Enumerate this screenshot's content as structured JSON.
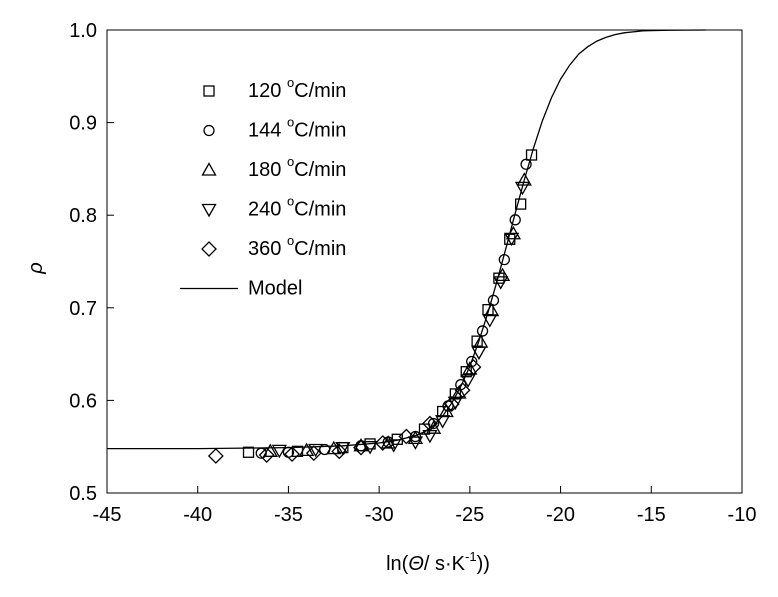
{
  "chart_data": {
    "type": "scatter",
    "title": "",
    "xlabel": "ln(Θ/ s·K⁻¹))",
    "xlabel_parts": {
      "pre": "ln(",
      "theta": "Θ",
      "mid": "/ s·K",
      "sup": "-1",
      "post": "))"
    },
    "ylabel": "ρ",
    "xlim": [
      -45,
      -10
    ],
    "ylim": [
      0.5,
      1.0
    ],
    "xticks": [
      -45,
      -40,
      -35,
      -30,
      -25,
      -20,
      -15,
      -10
    ],
    "xtick_labels": [
      "-45",
      "-40",
      "-35",
      "-30",
      "-25",
      "-20",
      "-15",
      "-10"
    ],
    "yticks": [
      0.5,
      0.6,
      0.7,
      0.8,
      0.9,
      1.0
    ],
    "ytick_labels": [
      "0.5",
      "0.6",
      "0.7",
      "0.8",
      "0.9",
      "1.0"
    ],
    "grid": false,
    "legend_position": "upper-left",
    "series": [
      {
        "name": "120 °C/min",
        "label_pre": "120 ",
        "label_sup": "o",
        "label_post": "C/min",
        "marker": "square",
        "x": [
          -37.2,
          -34.5,
          -32,
          -30.5,
          -29,
          -27.5,
          -26.5,
          -25.8,
          -25.2,
          -24.6,
          -24.0,
          -23.4,
          -22.8,
          -22.2,
          -21.6
        ],
        "y": [
          0.544,
          0.545,
          0.549,
          0.553,
          0.558,
          0.569,
          0.588,
          0.607,
          0.631,
          0.664,
          0.698,
          0.732,
          0.774,
          0.812,
          0.865
        ]
      },
      {
        "name": "144 °C/min",
        "label_pre": "144 ",
        "label_sup": "o",
        "label_post": "C/min",
        "marker": "circle",
        "x": [
          -36.5,
          -35,
          -33,
          -31,
          -29.5,
          -28,
          -27,
          -26.2,
          -25.5,
          -24.9,
          -24.3,
          -23.7,
          -23.1,
          -22.5,
          -21.9
        ],
        "y": [
          0.543,
          0.544,
          0.547,
          0.551,
          0.555,
          0.561,
          0.575,
          0.594,
          0.617,
          0.642,
          0.675,
          0.708,
          0.752,
          0.795,
          0.855
        ]
      },
      {
        "name": "180 °C/min",
        "label_pre": "180 ",
        "label_sup": "o",
        "label_post": "C/min",
        "marker": "triangle-up",
        "x": [
          -36,
          -34,
          -32.5,
          -31,
          -29.5,
          -28,
          -27,
          -26.3,
          -25.6,
          -25.0,
          -24.4,
          -23.8,
          -23.2,
          -22.6,
          -22.0
        ],
        "y": [
          0.545,
          0.546,
          0.548,
          0.551,
          0.554,
          0.559,
          0.57,
          0.588,
          0.608,
          0.634,
          0.663,
          0.697,
          0.735,
          0.78,
          0.838
        ]
      },
      {
        "name": "240 °C/min",
        "label_pre": "240 ",
        "label_sup": "o",
        "label_post": "C/min",
        "marker": "triangle-down",
        "x": [
          -35.5,
          -33.5,
          -32,
          -30.5,
          -29.2,
          -28,
          -27.2,
          -26.5,
          -25.8,
          -25.1,
          -24.5,
          -23.9,
          -23.3,
          -22.7,
          -22.1
        ],
        "y": [
          0.546,
          0.547,
          0.549,
          0.55,
          0.552,
          0.555,
          0.562,
          0.578,
          0.598,
          0.622,
          0.652,
          0.687,
          0.728,
          0.775,
          0.83
        ]
      },
      {
        "name": "360 °C/min",
        "label_pre": "360 ",
        "label_sup": "o",
        "label_post": "C/min",
        "marker": "diamond",
        "x": [
          -39.0,
          -36.2,
          -34.8,
          -33.6,
          -32.2,
          -31.0,
          -29.8,
          -28.5,
          -27.2,
          -26.0,
          -25.4,
          -24.8
        ],
        "y": [
          0.54,
          0.541,
          0.542,
          0.543,
          0.545,
          0.549,
          0.554,
          0.561,
          0.575,
          0.596,
          0.611,
          0.636
        ]
      },
      {
        "name": "Model",
        "marker": "line",
        "x": [
          -45,
          -40,
          -35,
          -32,
          -30,
          -29,
          -28,
          -27.5,
          -27,
          -26.5,
          -26,
          -25.5,
          -25,
          -24.5,
          -24,
          -23.5,
          -23,
          -22.5,
          -22,
          -21.5,
          -21,
          -20.5,
          -20,
          -19.5,
          -19,
          -18.5,
          -18,
          -17.5,
          -17,
          -16.5,
          -16,
          -15.5,
          -15,
          -14,
          -13,
          -12
        ],
        "y": [
          0.548,
          0.548,
          0.549,
          0.551,
          0.554,
          0.557,
          0.562,
          0.566,
          0.573,
          0.583,
          0.597,
          0.615,
          0.637,
          0.664,
          0.695,
          0.729,
          0.765,
          0.802,
          0.838,
          0.872,
          0.902,
          0.927,
          0.947,
          0.962,
          0.974,
          0.982,
          0.988,
          0.992,
          0.995,
          0.997,
          0.998,
          0.999,
          0.9994,
          0.9998,
          0.9999,
          1.0
        ]
      }
    ]
  }
}
